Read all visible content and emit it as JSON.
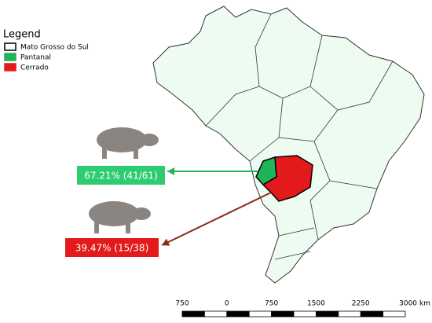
{
  "legend": {
    "title": "Legend",
    "items": [
      {
        "label": "Mato Grosso do Sul",
        "color": "#ffffff",
        "border": "#000000"
      },
      {
        "label": "Pantanal",
        "color": "#1fb457",
        "border": "#1fb457"
      },
      {
        "label": "Cerrado",
        "color": "#e31a1c",
        "border": "#e31a1c"
      }
    ]
  },
  "annotations": [
    {
      "label": "67.21% (41/61)",
      "color": "#2ecc71",
      "arrow": "#1fb457"
    },
    {
      "label": "39.47% (15/38)",
      "color": "#e31a1c",
      "arrow": "#8b2a1a"
    }
  ],
  "scale_bar": {
    "ticks": [
      "750",
      "0",
      "750",
      "1500",
      "2250",
      "3000 km"
    ]
  }
}
